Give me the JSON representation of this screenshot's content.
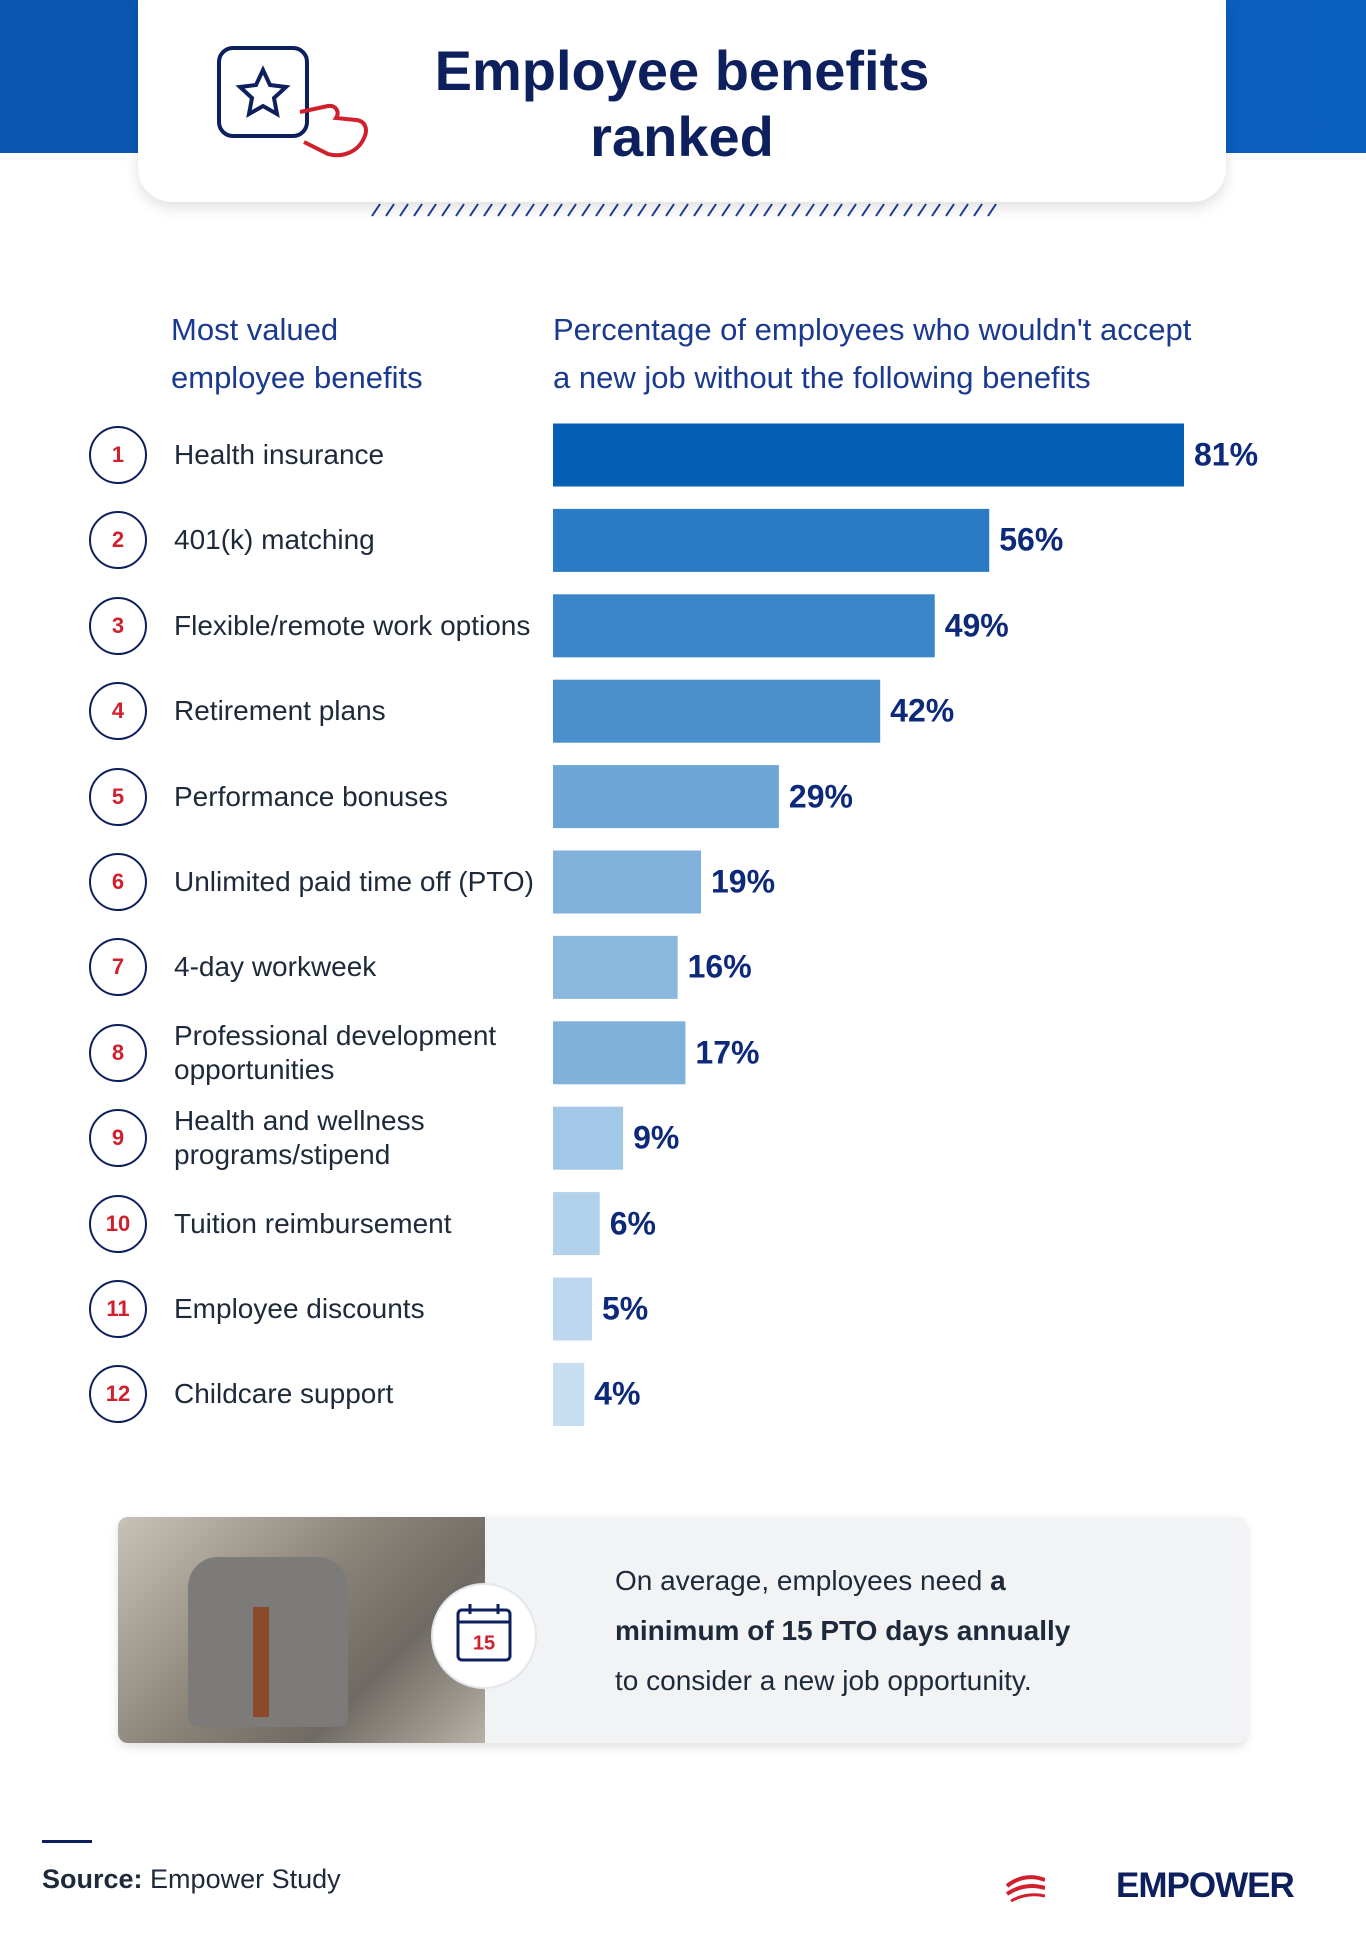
{
  "header": {
    "title_lines": [
      "Employee benefits",
      "ranked"
    ]
  },
  "chart_data": {
    "type": "bar",
    "orientation": "horizontal",
    "category_header_lines": [
      "Most valued",
      "employee benefits"
    ],
    "value_header_lines": [
      "Percentage of employees who wouldn't accept",
      "a new job without the following benefits"
    ],
    "ranks": [
      1,
      2,
      3,
      4,
      5,
      6,
      7,
      8,
      9,
      10,
      11,
      12
    ],
    "categories": [
      "Health insurance",
      "401(k) matching",
      "Flexible/remote work options",
      "Retirement plans",
      "Performance bonuses",
      "Unlimited paid time off (PTO)",
      "4-day workweek",
      "Professional development opportunities",
      "Health and wellness programs/stipend",
      "Tuition reimbursement",
      "Employee discounts",
      "Childcare support"
    ],
    "values": [
      81,
      56,
      49,
      42,
      29,
      19,
      16,
      17,
      9,
      6,
      5,
      4
    ],
    "value_labels": [
      "81%",
      "56%",
      "49%",
      "42%",
      "29%",
      "19%",
      "16%",
      "17%",
      "9%",
      "6%",
      "5%",
      "4%"
    ],
    "colors": [
      "#0560b5",
      "#2a7bc4",
      "#3a86c8",
      "#4a90cc",
      "#6ea6d5",
      "#80b2db",
      "#8bb8de",
      "#7fb1db",
      "#a3c7e6",
      "#b2d1eb",
      "#bcd7ee",
      "#c7ddf0"
    ]
  },
  "callout": {
    "calendar_day": "15",
    "line_1": "On average, employees need",
    "line_1_bold": "a",
    "line_2_bold": "minimum of 15 PTO days annually",
    "line_3": "to consider a new job opportunity."
  },
  "footer": {
    "source_label": "Source:",
    "source": "Empower Study",
    "brand": "EMPOWER"
  }
}
